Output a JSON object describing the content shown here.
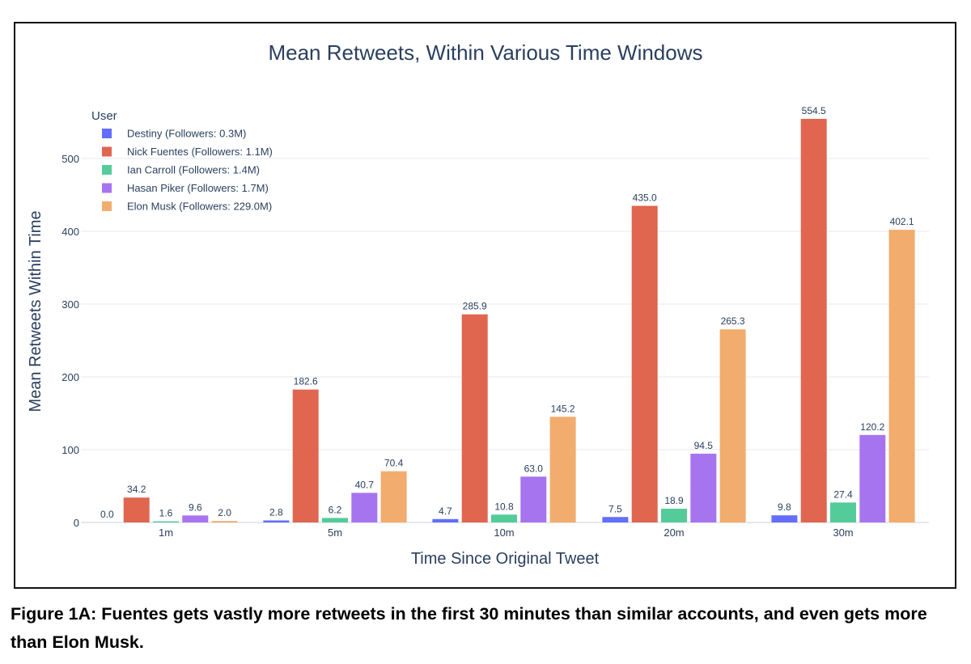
{
  "caption": "Figure 1A: Fuentes gets vastly more retweets in the first 30 minutes than similar accounts, and even gets more than Elon Musk.",
  "chart_data": {
    "type": "bar",
    "title": "Mean Retweets, Within Various Time Windows",
    "xlabel": "Time Since Original Tweet",
    "ylabel": "Mean Retweets Within Time",
    "categories": [
      "1m",
      "5m",
      "10m",
      "20m",
      "30m"
    ],
    "ylim": [
      0,
      600
    ],
    "yticks": [
      0,
      100,
      200,
      300,
      400,
      500
    ],
    "grid": true,
    "legend_title": "User",
    "legend_position": "top-left",
    "series": [
      {
        "name": "Destiny (Followers: 0.3M)",
        "color": "#636efa",
        "values": [
          0.0,
          2.8,
          4.7,
          7.5,
          9.8
        ],
        "labels": [
          "0.0",
          "2.8",
          "4.7",
          "7.5",
          "9.8"
        ]
      },
      {
        "name": "Nick Fuentes (Followers: 1.1M)",
        "color": "#e0664f",
        "values": [
          34.2,
          182.6,
          285.9,
          435.0,
          554.5
        ],
        "labels": [
          "34.2",
          "182.6",
          "285.9",
          "435.0",
          "554.5"
        ]
      },
      {
        "name": "Ian Carroll (Followers: 1.4M)",
        "color": "#53cc9a",
        "values": [
          1.6,
          6.2,
          10.8,
          18.9,
          27.4
        ],
        "labels": [
          "1.6",
          "6.2",
          "10.8",
          "18.9",
          "27.4"
        ]
      },
      {
        "name": "Hasan Piker (Followers: 1.7M)",
        "color": "#a774f0",
        "values": [
          9.6,
          40.7,
          63.0,
          94.5,
          120.2
        ],
        "labels": [
          "9.6",
          "40.7",
          "63.0",
          "94.5",
          "120.2"
        ]
      },
      {
        "name": "Elon Musk (Followers: 229.0M)",
        "color": "#f2ac6e",
        "values": [
          2.0,
          70.4,
          145.2,
          265.3,
          402.1
        ],
        "labels": [
          "2.0",
          "70.4",
          "145.2",
          "265.3",
          "402.1"
        ]
      }
    ]
  }
}
